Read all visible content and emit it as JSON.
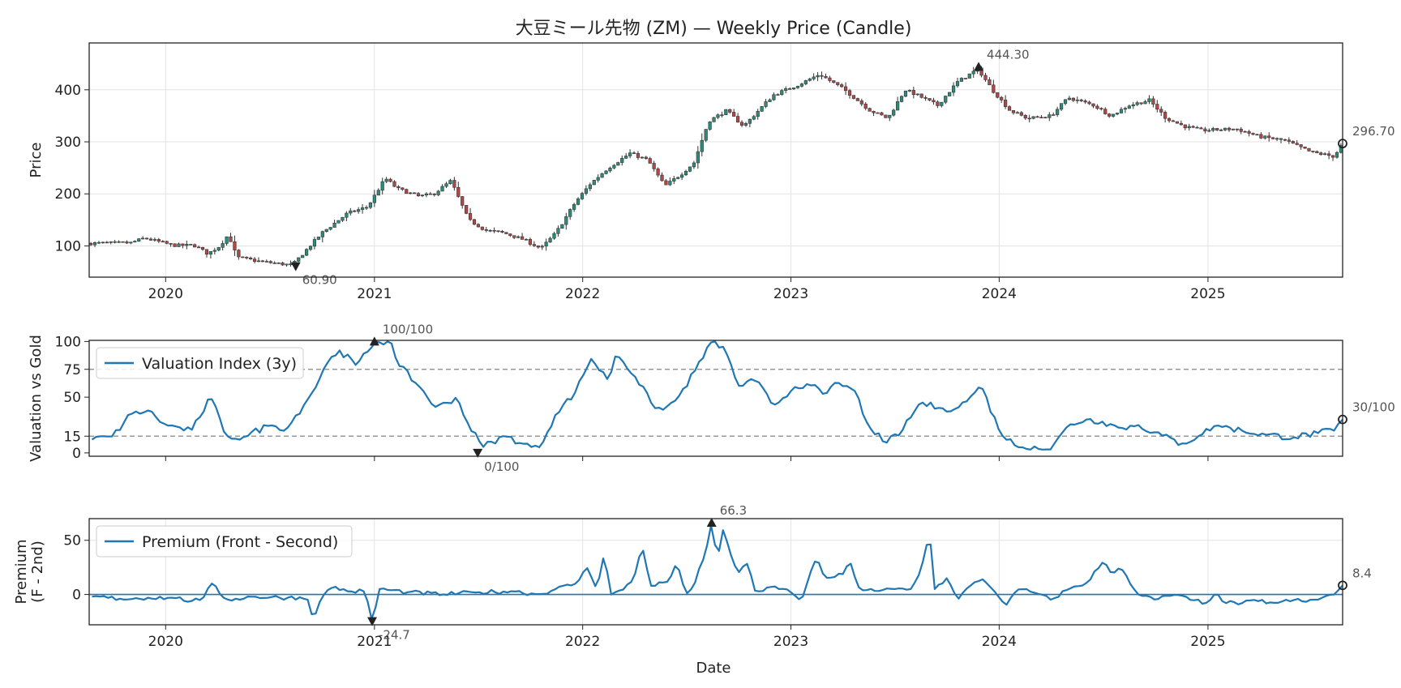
{
  "chart_data": [
    {
      "type": "candlestick",
      "title": "大豆ミール先物 (ZM) — Weekly Price (Candle)",
      "ylabel": "Price",
      "ylim": [
        40,
        490
      ],
      "yticks": [
        100,
        200,
        300,
        400
      ],
      "xlim": [
        "2019-08-20",
        "2025-08-25"
      ],
      "xticks": [
        "2020",
        "2021",
        "2022",
        "2023",
        "2024",
        "2025"
      ],
      "grid": true,
      "colors": {
        "up": "#2e8b7a",
        "down": "#b04848",
        "wick": "#333333"
      },
      "close_keypoints": [
        [
          "2019-08-25",
          105
        ],
        [
          "2019-11-01",
          106
        ],
        [
          "2019-11-25",
          115
        ],
        [
          "2020-01-15",
          101
        ],
        [
          "2020-02-20",
          101
        ],
        [
          "2020-03-15",
          85
        ],
        [
          "2020-04-05",
          100
        ],
        [
          "2020-04-20",
          122
        ],
        [
          "2020-05-05",
          78
        ],
        [
          "2020-06-15",
          70
        ],
        [
          "2020-08-10",
          63
        ],
        [
          "2020-10-01",
          125
        ],
        [
          "2020-11-15",
          163
        ],
        [
          "2020-12-20",
          175
        ],
        [
          "2021-01-20",
          230
        ],
        [
          "2021-02-10",
          210
        ],
        [
          "2021-03-20",
          195
        ],
        [
          "2021-04-15",
          200
        ],
        [
          "2021-05-15",
          225
        ],
        [
          "2021-06-15",
          150
        ],
        [
          "2021-07-15",
          130
        ],
        [
          "2021-08-15",
          125
        ],
        [
          "2021-09-20",
          112
        ],
        [
          "2021-10-20",
          95
        ],
        [
          "2021-11-15",
          125
        ],
        [
          "2021-12-20",
          185
        ],
        [
          "2022-01-15",
          220
        ],
        [
          "2022-02-15",
          250
        ],
        [
          "2022-03-25",
          278
        ],
        [
          "2022-04-25",
          265
        ],
        [
          "2022-05-25",
          215
        ],
        [
          "2022-06-25",
          240
        ],
        [
          "2022-07-15",
          260
        ],
        [
          "2022-08-10",
          340
        ],
        [
          "2022-09-10",
          360
        ],
        [
          "2022-10-10",
          330
        ],
        [
          "2022-12-01",
          390
        ],
        [
          "2023-01-15",
          410
        ],
        [
          "2023-02-20",
          430
        ],
        [
          "2023-04-05",
          400
        ],
        [
          "2023-05-20",
          360
        ],
        [
          "2023-06-20",
          345
        ],
        [
          "2023-07-20",
          400
        ],
        [
          "2023-08-10",
          390
        ],
        [
          "2023-09-15",
          370
        ],
        [
          "2023-10-20",
          415
        ],
        [
          "2023-11-25",
          440
        ],
        [
          "2023-12-20",
          400
        ],
        [
          "2024-01-20",
          360
        ],
        [
          "2024-02-20",
          345
        ],
        [
          "2024-04-01",
          350
        ],
        [
          "2024-05-01",
          385
        ],
        [
          "2024-06-15",
          370
        ],
        [
          "2024-07-15",
          350
        ],
        [
          "2024-08-15",
          370
        ],
        [
          "2024-09-20",
          380
        ],
        [
          "2024-10-20",
          345
        ],
        [
          "2024-11-20",
          330
        ],
        [
          "2024-12-20",
          322
        ],
        [
          "2025-02-20",
          325
        ],
        [
          "2025-04-01",
          310
        ],
        [
          "2025-05-15",
          303
        ],
        [
          "2025-07-01",
          280
        ],
        [
          "2025-08-10",
          272
        ],
        [
          "2025-08-25",
          296.7
        ]
      ],
      "annotations": [
        {
          "label": "444.30",
          "date": "2023-11-26",
          "value": 444.3,
          "marker": "max"
        },
        {
          "label": "60.90",
          "date": "2020-08-16",
          "value": 60.9,
          "marker": "min"
        },
        {
          "label": "296.70",
          "date": "2025-08-25",
          "value": 296.7,
          "marker": "last"
        }
      ]
    },
    {
      "type": "line",
      "ylabel": "Valuation vs Gold",
      "ylim": [
        -3,
        101
      ],
      "yticks": [
        0,
        15,
        50,
        75,
        100
      ],
      "reference_lines": [
        15,
        75
      ],
      "grid": false,
      "legend": "top-left",
      "series": [
        {
          "name": "Valuation Index (3y)",
          "color": "#1f77b4",
          "keypoints": [
            [
              "2019-08-25",
              12
            ],
            [
              "2019-10-01",
              15
            ],
            [
              "2019-11-01",
              35
            ],
            [
              "2019-12-01",
              38
            ],
            [
              "2020-01-01",
              25
            ],
            [
              "2020-02-15",
              20
            ],
            [
              "2020-03-01",
              32
            ],
            [
              "2020-03-20",
              51
            ],
            [
              "2020-04-15",
              15
            ],
            [
              "2020-05-15",
              14
            ],
            [
              "2020-07-01",
              25
            ],
            [
              "2020-08-01",
              22
            ],
            [
              "2020-09-15",
              55
            ],
            [
              "2020-10-15",
              85
            ],
            [
              "2020-11-01",
              92
            ],
            [
              "2020-12-01",
              78
            ],
            [
              "2021-01-01",
              100
            ],
            [
              "2021-01-30",
              100
            ],
            [
              "2021-02-10",
              80
            ],
            [
              "2021-03-20",
              60
            ],
            [
              "2021-04-20",
              40
            ],
            [
              "2021-05-25",
              50
            ],
            [
              "2021-06-15",
              25
            ],
            [
              "2021-07-10",
              5
            ],
            [
              "2021-07-25",
              10
            ],
            [
              "2021-08-20",
              15
            ],
            [
              "2021-09-20",
              8
            ],
            [
              "2021-10-15",
              3
            ],
            [
              "2021-11-15",
              35
            ],
            [
              "2021-12-20",
              55
            ],
            [
              "2022-01-15",
              85
            ],
            [
              "2022-02-15",
              65
            ],
            [
              "2022-03-01",
              90
            ],
            [
              "2022-04-01",
              70
            ],
            [
              "2022-05-01",
              45
            ],
            [
              "2022-05-20",
              38
            ],
            [
              "2022-06-15",
              48
            ],
            [
              "2022-07-15",
              72
            ],
            [
              "2022-08-15",
              100
            ],
            [
              "2022-09-05",
              95
            ],
            [
              "2022-10-01",
              60
            ],
            [
              "2022-11-01",
              65
            ],
            [
              "2022-12-01",
              42
            ],
            [
              "2023-01-10",
              60
            ],
            [
              "2023-02-01",
              62
            ],
            [
              "2023-03-01",
              52
            ],
            [
              "2023-03-25",
              63
            ],
            [
              "2023-04-25",
              55
            ],
            [
              "2023-05-10",
              30
            ],
            [
              "2023-06-15",
              8
            ],
            [
              "2023-07-15",
              20
            ],
            [
              "2023-08-15",
              45
            ],
            [
              "2023-09-20",
              40
            ],
            [
              "2023-10-20",
              40
            ],
            [
              "2023-11-15",
              52
            ],
            [
              "2023-12-01",
              60
            ],
            [
              "2024-01-01",
              20
            ],
            [
              "2024-02-01",
              5
            ],
            [
              "2024-03-01",
              6
            ],
            [
              "2024-04-01",
              3
            ],
            [
              "2024-05-01",
              25
            ],
            [
              "2024-06-01",
              30
            ],
            [
              "2024-07-01",
              28
            ],
            [
              "2024-08-01",
              22
            ],
            [
              "2024-09-01",
              25
            ],
            [
              "2024-10-01",
              18
            ],
            [
              "2024-11-15",
              8
            ],
            [
              "2024-12-15",
              15
            ],
            [
              "2025-01-15",
              25
            ],
            [
              "2025-03-01",
              20
            ],
            [
              "2025-04-15",
              16
            ],
            [
              "2025-06-01",
              14
            ],
            [
              "2025-07-15",
              18
            ],
            [
              "2025-08-10",
              20
            ],
            [
              "2025-08-25",
              30
            ]
          ]
        }
      ],
      "annotations": [
        {
          "label": "100/100",
          "date": "2021-01-01",
          "value": 100,
          "marker": "max"
        },
        {
          "label": "0/100",
          "date": "2021-07-01",
          "value": 0,
          "marker": "min"
        },
        {
          "label": "30/100",
          "date": "2025-08-25",
          "value": 30,
          "marker": "last"
        }
      ]
    },
    {
      "type": "line",
      "ylabel": "Premium\n(F - 2nd)",
      "xlabel": "Date",
      "ylim": [
        -28,
        70
      ],
      "yticks": [
        0,
        50
      ],
      "xticks": [
        "2020",
        "2021",
        "2022",
        "2023",
        "2024",
        "2025"
      ],
      "reference_lines": [
        0
      ],
      "grid": true,
      "legend": "top-left",
      "series": [
        {
          "name": "Premium (Front - Second)",
          "color": "#1f77b4",
          "keypoints": [
            [
              "2019-08-25",
              -2
            ],
            [
              "2019-10-15",
              -4
            ],
            [
              "2019-12-01",
              -3
            ],
            [
              "2020-01-15",
              -3
            ],
            [
              "2020-02-15",
              -6
            ],
            [
              "2020-03-05",
              -5
            ],
            [
              "2020-03-22",
              10
            ],
            [
              "2020-04-15",
              -5
            ],
            [
              "2020-06-01",
              -2
            ],
            [
              "2020-08-01",
              -3
            ],
            [
              "2020-09-05",
              -3
            ],
            [
              "2020-09-15",
              -22
            ],
            [
              "2020-10-01",
              -2
            ],
            [
              "2020-10-20",
              7
            ],
            [
              "2020-11-15",
              3
            ],
            [
              "2020-12-15",
              3
            ],
            [
              "2020-12-28",
              -24.7
            ],
            [
              "2021-01-10",
              5
            ],
            [
              "2021-03-01",
              2
            ],
            [
              "2021-05-01",
              0
            ],
            [
              "2021-07-01",
              2
            ],
            [
              "2021-09-01",
              3
            ],
            [
              "2021-10-15",
              0
            ],
            [
              "2021-11-15",
              5
            ],
            [
              "2021-12-20",
              10
            ],
            [
              "2022-01-10",
              25
            ],
            [
              "2022-01-25",
              5
            ],
            [
              "2022-02-08",
              38
            ],
            [
              "2022-02-20",
              0
            ],
            [
              "2022-03-15",
              5
            ],
            [
              "2022-04-01",
              15
            ],
            [
              "2022-04-15",
              45
            ],
            [
              "2022-05-01",
              8
            ],
            [
              "2022-06-01",
              12
            ],
            [
              "2022-06-15",
              30
            ],
            [
              "2022-07-01",
              0
            ],
            [
              "2022-07-15",
              8
            ],
            [
              "2022-08-05",
              40
            ],
            [
              "2022-08-15",
              66.3
            ],
            [
              "2022-08-25",
              32
            ],
            [
              "2022-09-05",
              62
            ],
            [
              "2022-09-15",
              40
            ],
            [
              "2022-10-01",
              20
            ],
            [
              "2022-10-15",
              30
            ],
            [
              "2022-11-01",
              0
            ],
            [
              "2022-12-01",
              8
            ],
            [
              "2023-01-01",
              2
            ],
            [
              "2023-01-20",
              -5
            ],
            [
              "2023-02-15",
              35
            ],
            [
              "2023-03-01",
              15
            ],
            [
              "2023-04-01",
              18
            ],
            [
              "2023-04-15",
              30
            ],
            [
              "2023-05-01",
              5
            ],
            [
              "2023-06-01",
              3
            ],
            [
              "2023-07-01",
              5
            ],
            [
              "2023-08-01",
              5
            ],
            [
              "2023-08-15",
              20
            ],
            [
              "2023-09-01",
              58
            ],
            [
              "2023-09-10",
              5
            ],
            [
              "2023-10-01",
              15
            ],
            [
              "2023-10-20",
              -5
            ],
            [
              "2023-11-15",
              10
            ],
            [
              "2023-12-01",
              15
            ],
            [
              "2023-12-20",
              5
            ],
            [
              "2024-01-15",
              -10
            ],
            [
              "2024-02-01",
              5
            ],
            [
              "2024-03-01",
              2
            ],
            [
              "2024-04-01",
              -5
            ],
            [
              "2024-05-01",
              5
            ],
            [
              "2024-06-01",
              10
            ],
            [
              "2024-07-01",
              30
            ],
            [
              "2024-07-15",
              20
            ],
            [
              "2024-08-01",
              25
            ],
            [
              "2024-09-01",
              0
            ],
            [
              "2024-10-01",
              -5
            ],
            [
              "2024-11-01",
              0
            ],
            [
              "2024-12-01",
              -5
            ],
            [
              "2025-01-01",
              -8
            ],
            [
              "2025-01-15",
              2
            ],
            [
              "2025-02-01",
              -8
            ],
            [
              "2025-03-01",
              -8
            ],
            [
              "2025-04-01",
              -6
            ],
            [
              "2025-05-01",
              -8
            ],
            [
              "2025-06-01",
              -5
            ],
            [
              "2025-06-20",
              -7
            ],
            [
              "2025-07-20",
              -3
            ],
            [
              "2025-08-10",
              0
            ],
            [
              "2025-08-25",
              8.4
            ]
          ]
        }
      ],
      "annotations": [
        {
          "label": "66.3",
          "date": "2022-08-15",
          "value": 66.3,
          "marker": "max"
        },
        {
          "label": "-24.7",
          "date": "2020-12-28",
          "value": -24.7,
          "marker": "min"
        },
        {
          "label": "8.4",
          "date": "2025-08-25",
          "value": 8.4,
          "marker": "last"
        }
      ]
    }
  ]
}
